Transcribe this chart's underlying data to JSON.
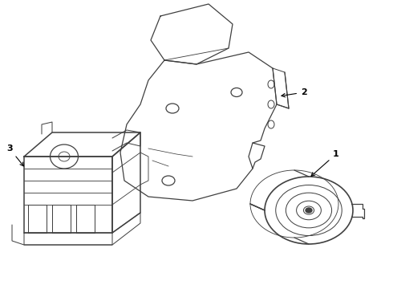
{
  "background_color": "#ffffff",
  "line_color": "#404040",
  "line_width": 0.9,
  "figsize": [
    4.9,
    3.6
  ],
  "dpi": 100
}
